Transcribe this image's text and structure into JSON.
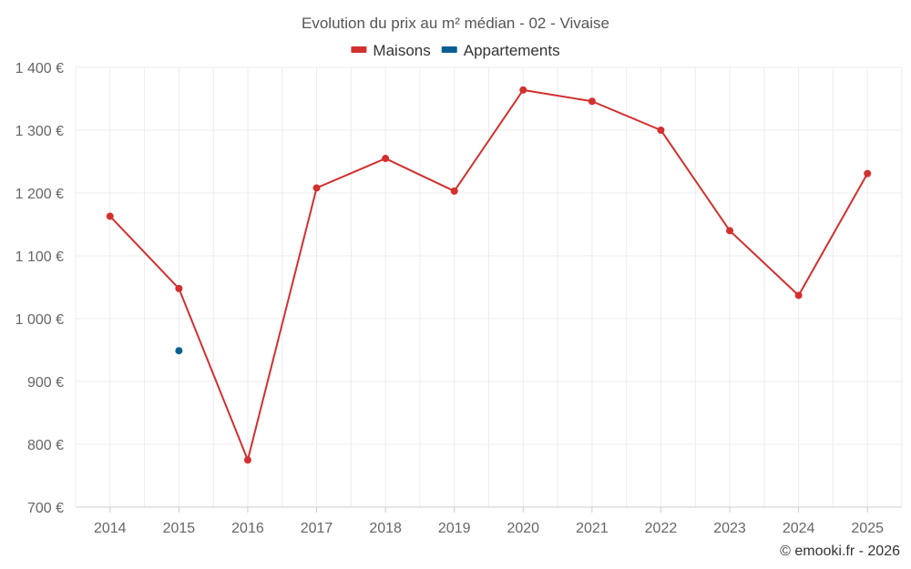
{
  "chart_data": {
    "type": "line",
    "title": "Evolution du prix au m² médian - 02 - Vivaise",
    "x": [
      "2014",
      "2015",
      "2016",
      "2017",
      "2018",
      "2019",
      "2020",
      "2021",
      "2022",
      "2023",
      "2024",
      "2025"
    ],
    "series": [
      {
        "name": "Maisons",
        "color": "#d32f2f",
        "values": [
          1163,
          1048,
          775,
          1208,
          1255,
          1203,
          1364,
          1346,
          1300,
          1140,
          1037,
          1231
        ]
      },
      {
        "name": "Appartements",
        "color": "#0a5f91",
        "values": [
          null,
          949,
          null,
          null,
          null,
          null,
          null,
          null,
          null,
          null,
          null,
          null
        ]
      }
    ],
    "ylim": [
      700,
      1400
    ],
    "yticks": [
      700,
      800,
      900,
      1000,
      1100,
      1200,
      1300,
      1400
    ],
    "ytick_labels": [
      "700 €",
      "800 €",
      "900 €",
      "1 000 €",
      "1 100 €",
      "1 200 €",
      "1 300 €",
      "1 400 €"
    ],
    "grid": true,
    "legend": "top-center",
    "xlabel": "",
    "ylabel": ""
  },
  "credit": "© emooki.fr - 2026"
}
